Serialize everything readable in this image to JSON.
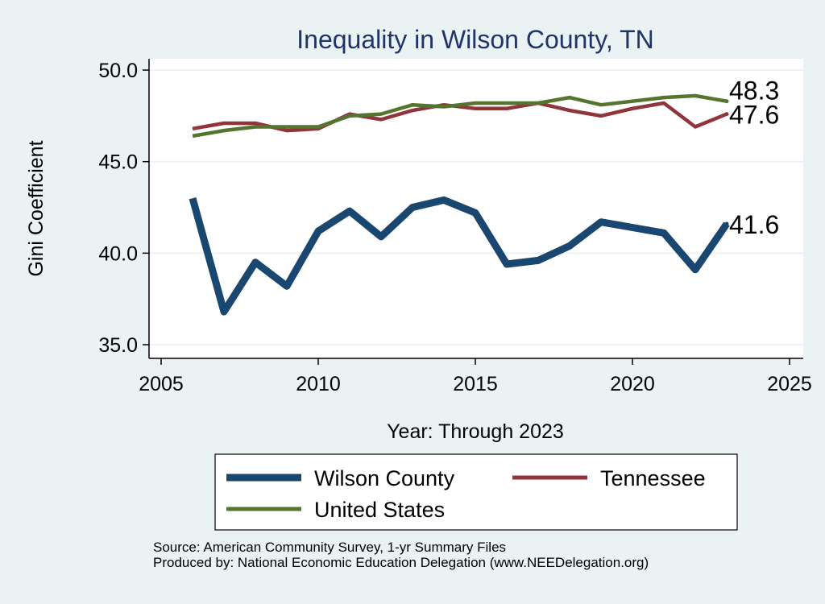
{
  "chart_data": {
    "type": "line",
    "title": "Inequality in Wilson County, TN",
    "xlabel": "Year: Through 2023",
    "ylabel": "Gini Coefficient",
    "xlim": [
      2005,
      2025
    ],
    "ylim": [
      35,
      50
    ],
    "x_ticks": [
      2005,
      2010,
      2015,
      2020,
      2025
    ],
    "y_ticks": [
      35,
      40,
      45,
      50
    ],
    "x_tick_labels": [
      "2005",
      "2010",
      "2015",
      "2020",
      "2025"
    ],
    "y_tick_labels": [
      "35.0",
      "40.0",
      "45.0",
      "50.0"
    ],
    "grid": true,
    "legend_position": "bottom",
    "series": [
      {
        "name": "Wilson County",
        "color": "#1a476f",
        "x": [
          2006,
          2007,
          2008,
          2009,
          2010,
          2011,
          2012,
          2013,
          2014,
          2015,
          2016,
          2017,
          2018,
          2019,
          2020,
          2021,
          2022,
          2023
        ],
        "values": [
          43.0,
          36.8,
          39.5,
          38.2,
          41.2,
          42.3,
          40.9,
          42.5,
          42.9,
          42.2,
          39.4,
          39.6,
          40.4,
          41.7,
          41.4,
          41.1,
          39.1,
          41.6
        ],
        "end_label": "41.6"
      },
      {
        "name": "Tennessee",
        "color": "#90353b",
        "x": [
          2006,
          2007,
          2008,
          2009,
          2010,
          2011,
          2012,
          2013,
          2014,
          2015,
          2016,
          2017,
          2018,
          2019,
          2020,
          2021,
          2022,
          2023
        ],
        "values": [
          46.8,
          47.1,
          47.1,
          46.7,
          46.8,
          47.6,
          47.3,
          47.8,
          48.1,
          47.9,
          47.9,
          48.2,
          47.8,
          47.5,
          47.9,
          48.2,
          46.9,
          47.6
        ],
        "end_label": "47.6"
      },
      {
        "name": "United States",
        "color": "#55752f",
        "x": [
          2006,
          2007,
          2008,
          2009,
          2010,
          2011,
          2012,
          2013,
          2014,
          2015,
          2016,
          2017,
          2018,
          2019,
          2020,
          2021,
          2022,
          2023
        ],
        "values": [
          46.4,
          46.7,
          46.9,
          46.9,
          46.9,
          47.5,
          47.6,
          48.1,
          48.0,
          48.2,
          48.2,
          48.2,
          48.5,
          48.1,
          48.3,
          48.5,
          48.6,
          48.3
        ],
        "end_label": "48.3"
      }
    ]
  },
  "source": {
    "line1": "Source: American Community Survey, 1-yr Summary Files",
    "line2": "Produced by: National Economic Education Delegation (www.NEEDelegation.org)"
  }
}
